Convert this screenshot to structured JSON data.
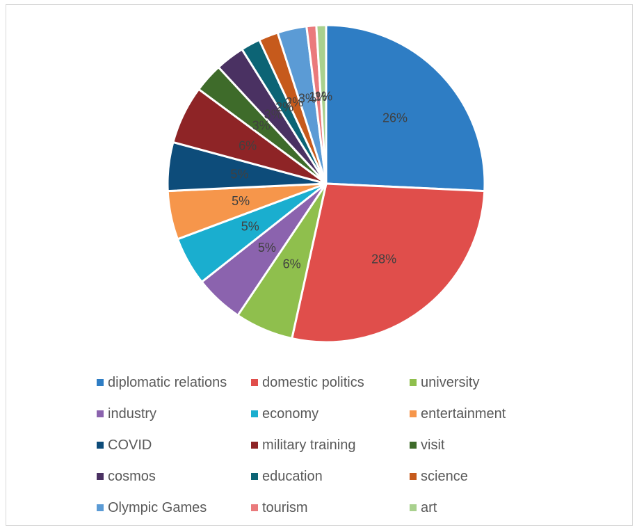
{
  "chart_data": {
    "type": "pie",
    "series": [
      {
        "name": "diplomatic relations",
        "value": 26,
        "label": "26%",
        "color": "#2E7DC4"
      },
      {
        "name": "domestic politics",
        "value": 28,
        "label": "28%",
        "color": "#E04E4B"
      },
      {
        "name": "university",
        "value": 6,
        "label": "6%",
        "color": "#8FBF4D"
      },
      {
        "name": "industry",
        "value": 5,
        "label": "5%",
        "color": "#8B63AE"
      },
      {
        "name": "economy",
        "value": 5,
        "label": "5%",
        "color": "#1AAECF"
      },
      {
        "name": "entertainment",
        "value": 5,
        "label": "5%",
        "color": "#F6964B"
      },
      {
        "name": "COVID",
        "value": 5,
        "label": "5%",
        "color": "#0D4C7A"
      },
      {
        "name": "military training",
        "value": 6,
        "label": "6%",
        "color": "#8E2426"
      },
      {
        "name": "visit",
        "value": 3,
        "label": "3%",
        "color": "#3E6B2A"
      },
      {
        "name": "cosmos",
        "value": 3,
        "label": "3%",
        "color": "#4A3162"
      },
      {
        "name": "education",
        "value": 2,
        "label": "2%",
        "color": "#0C6475"
      },
      {
        "name": "science",
        "value": 2,
        "label": "2%",
        "color": "#C65A1C"
      },
      {
        "name": "Olympic Games",
        "value": 3,
        "label": "3%",
        "color": "#5B9BD5"
      },
      {
        "name": "tourism",
        "value": 1,
        "label": "1%",
        "color": "#EA7A7C"
      },
      {
        "name": "art",
        "value": 1,
        "label": "1%",
        "color": "#A9D18E"
      }
    ],
    "legend_position": "bottom"
  }
}
